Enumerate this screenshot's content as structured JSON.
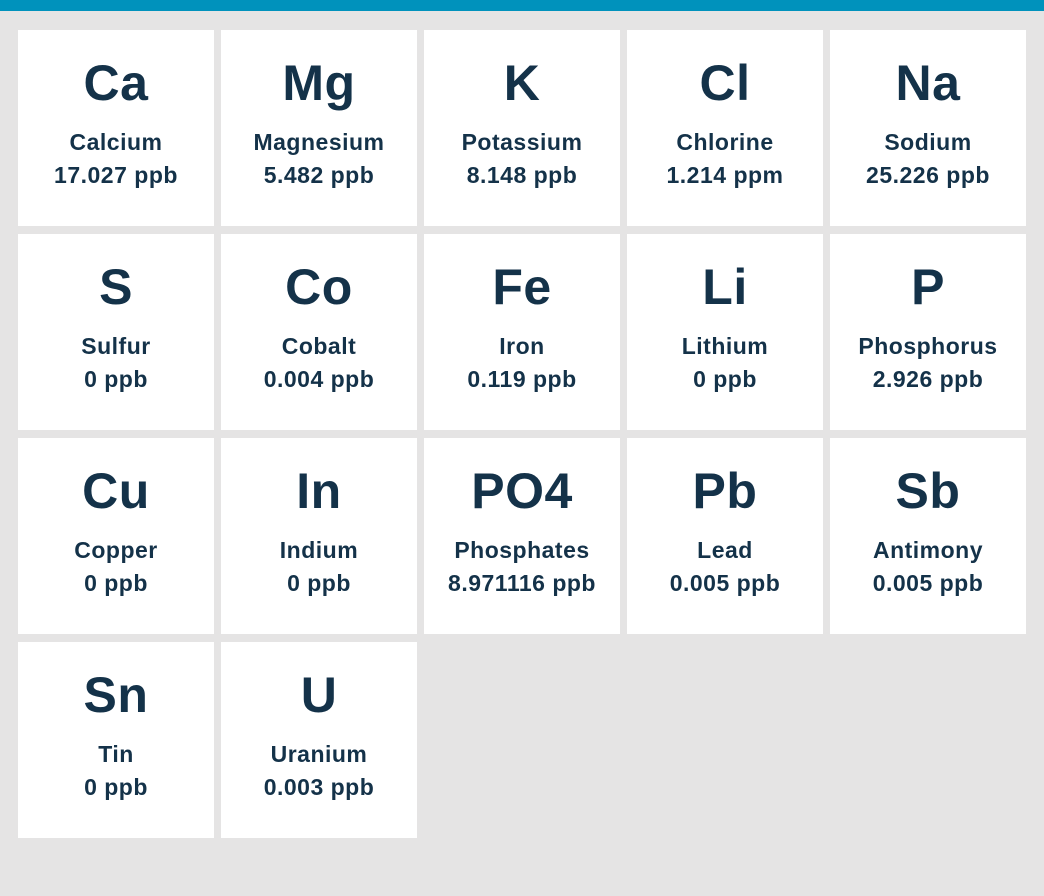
{
  "colors": {
    "accent_bar": "#0092bc",
    "text_navy": "#143249",
    "background": "#e5e4e4",
    "card_background": "#ffffff"
  },
  "elements": [
    {
      "symbol": "Ca",
      "name": "Calcium",
      "value": "17.027 ppb"
    },
    {
      "symbol": "Mg",
      "name": "Magnesium",
      "value": "5.482 ppb"
    },
    {
      "symbol": "K",
      "name": "Potassium",
      "value": "8.148 ppb"
    },
    {
      "symbol": "Cl",
      "name": "Chlorine",
      "value": "1.214 ppm"
    },
    {
      "symbol": "Na",
      "name": "Sodium",
      "value": "25.226 ppb"
    },
    {
      "symbol": "S",
      "name": "Sulfur",
      "value": "0 ppb"
    },
    {
      "symbol": "Co",
      "name": "Cobalt",
      "value": "0.004 ppb"
    },
    {
      "symbol": "Fe",
      "name": "Iron",
      "value": "0.119 ppb"
    },
    {
      "symbol": "Li",
      "name": "Lithium",
      "value": "0 ppb"
    },
    {
      "symbol": "P",
      "name": "Phosphorus",
      "value": "2.926 ppb"
    },
    {
      "symbol": "Cu",
      "name": "Copper",
      "value": "0 ppb"
    },
    {
      "symbol": "In",
      "name": "Indium",
      "value": "0 ppb"
    },
    {
      "symbol": "PO4",
      "name": "Phosphates",
      "value": "8.971116 ppb"
    },
    {
      "symbol": "Pb",
      "name": "Lead",
      "value": "0.005 ppb"
    },
    {
      "symbol": "Sb",
      "name": "Antimony",
      "value": "0.005 ppb"
    },
    {
      "symbol": "Sn",
      "name": "Tin",
      "value": "0 ppb"
    },
    {
      "symbol": "U",
      "name": "Uranium",
      "value": "0.003 ppb"
    }
  ],
  "chart_data": {
    "type": "table",
    "title": "",
    "columns": [
      "symbol",
      "name",
      "concentration"
    ],
    "rows": [
      [
        "Ca",
        "Calcium",
        "17.027 ppb"
      ],
      [
        "Mg",
        "Magnesium",
        "5.482 ppb"
      ],
      [
        "K",
        "Potassium",
        "8.148 ppb"
      ],
      [
        "Cl",
        "Chlorine",
        "1.214 ppm"
      ],
      [
        "Na",
        "Sodium",
        "25.226 ppb"
      ],
      [
        "S",
        "Sulfur",
        "0 ppb"
      ],
      [
        "Co",
        "Cobalt",
        "0.004 ppb"
      ],
      [
        "Fe",
        "Iron",
        "0.119 ppb"
      ],
      [
        "Li",
        "Lithium",
        "0 ppb"
      ],
      [
        "P",
        "Phosphorus",
        "2.926 ppb"
      ],
      [
        "Cu",
        "Copper",
        "0 ppb"
      ],
      [
        "In",
        "Indium",
        "0 ppb"
      ],
      [
        "PO4",
        "Phosphates",
        "8.971116 ppb"
      ],
      [
        "Pb",
        "Lead",
        "0.005 ppb"
      ],
      [
        "Sb",
        "Antimony",
        "0.005 ppb"
      ],
      [
        "Sn",
        "Tin",
        "0 ppb"
      ],
      [
        "U",
        "Uranium",
        "0.003 ppb"
      ]
    ],
    "layout": "tile-grid, 5 columns, 4 rows (last row has 2 tiles)"
  }
}
